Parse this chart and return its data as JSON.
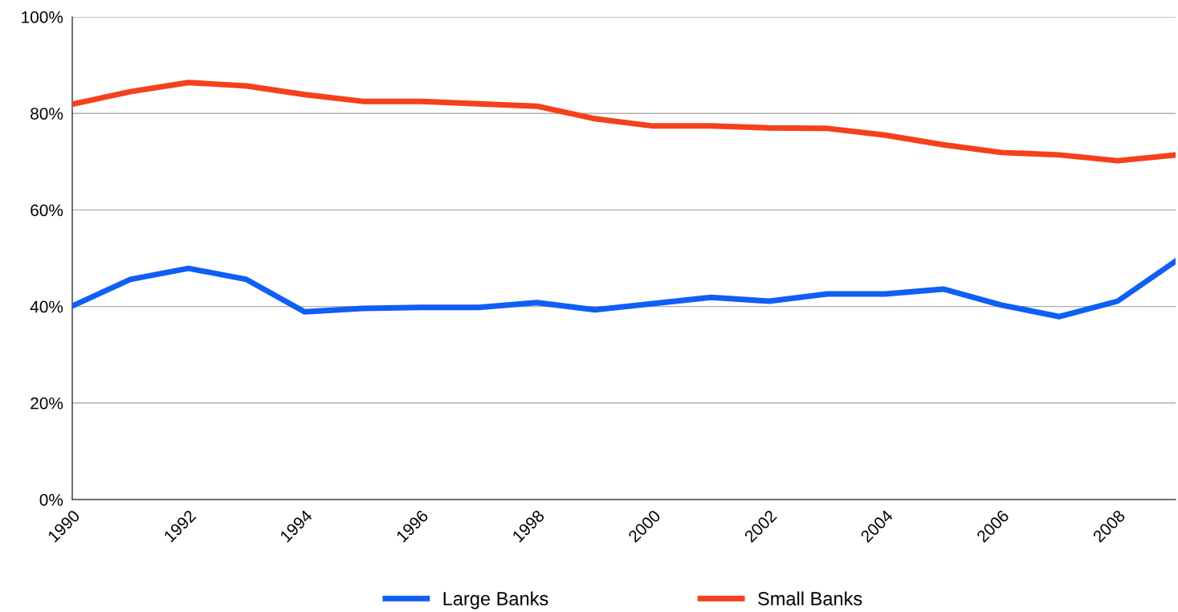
{
  "chart_data": {
    "type": "line",
    "x": [
      1990,
      1991,
      1992,
      1993,
      1994,
      1995,
      1996,
      1997,
      1998,
      1999,
      2000,
      2001,
      2002,
      2003,
      2004,
      2005,
      2006,
      2007,
      2008,
      2009
    ],
    "series": [
      {
        "name": "Large Banks",
        "color": "#0f5ff5",
        "values": [
          40.1,
          45.6,
          47.9,
          45.6,
          38.9,
          39.6,
          39.8,
          39.8,
          40.8,
          39.3,
          40.6,
          41.9,
          41.1,
          42.6,
          42.6,
          43.6,
          40.3,
          37.9,
          41.1,
          49.4
        ]
      },
      {
        "name": "Small Banks",
        "color": "#f5401d",
        "values": [
          81.9,
          84.5,
          86.4,
          85.7,
          83.9,
          82.5,
          82.5,
          82.0,
          81.5,
          78.9,
          77.4,
          77.4,
          77.0,
          76.9,
          75.5,
          73.5,
          71.9,
          71.4,
          70.2,
          71.4
        ]
      }
    ],
    "xlim": [
      1990,
      2009
    ],
    "xticks": [
      1990,
      1992,
      1994,
      1996,
      1998,
      2000,
      2002,
      2004,
      2006,
      2008
    ],
    "ylim": [
      0,
      100
    ],
    "yticks": [
      {
        "value": 0,
        "label": "0%"
      },
      {
        "value": 20,
        "label": "20%"
      },
      {
        "value": 40,
        "label": "40%"
      },
      {
        "value": 60,
        "label": "60%"
      },
      {
        "value": 80,
        "label": "80%"
      },
      {
        "value": 100,
        "label": "100%"
      }
    ],
    "grid": "y",
    "legend": "bottom",
    "marker": "none",
    "line_style": "solid"
  }
}
